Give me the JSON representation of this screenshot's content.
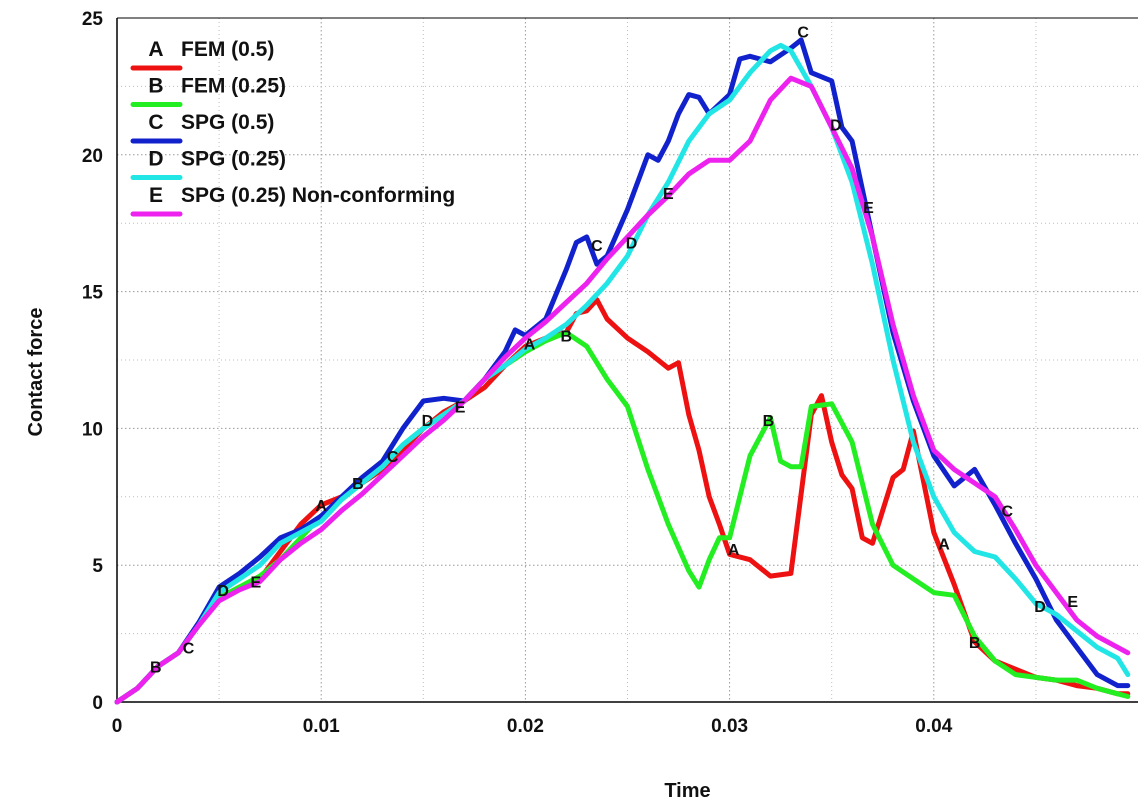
{
  "chart_data": {
    "type": "line",
    "title": "",
    "xlabel": "Time",
    "ylabel": "Contact force",
    "xlim": [
      0,
      0.05
    ],
    "ylim": [
      0,
      25
    ],
    "xticks": [
      0,
      0.01,
      0.02,
      0.03,
      0.04
    ],
    "xtick_labels": [
      "0",
      "0.01",
      "0.02",
      "0.03",
      "0.04"
    ],
    "yticks": [
      0,
      5,
      10,
      15,
      20,
      25
    ],
    "ytick_labels": [
      "0",
      "5",
      "10",
      "15",
      "20",
      "25"
    ],
    "grid": true,
    "legend_position": "top-left",
    "series": [
      {
        "name": "FEM (0.5)",
        "marker": "A",
        "color": "#ee1111",
        "x": [
          0,
          0.001,
          0.002,
          0.003,
          0.004,
          0.005,
          0.006,
          0.007,
          0.008,
          0.009,
          0.01,
          0.011,
          0.012,
          0.013,
          0.014,
          0.015,
          0.016,
          0.017,
          0.018,
          0.019,
          0.02,
          0.021,
          0.022,
          0.0225,
          0.023,
          0.0235,
          0.024,
          0.025,
          0.026,
          0.027,
          0.0275,
          0.028,
          0.0285,
          0.029,
          0.0295,
          0.03,
          0.031,
          0.032,
          0.033,
          0.034,
          0.0345,
          0.035,
          0.0355,
          0.036,
          0.0365,
          0.037,
          0.0375,
          0.038,
          0.0385,
          0.039,
          0.04,
          0.041,
          0.042,
          0.043,
          0.044,
          0.045,
          0.046,
          0.047,
          0.048,
          0.049,
          0.0495
        ],
        "y": [
          0,
          0.5,
          1.3,
          1.8,
          2.8,
          3.8,
          4.2,
          4.5,
          5.5,
          6.5,
          7.2,
          7.5,
          8.0,
          8.5,
          9.2,
          10.0,
          10.6,
          11.0,
          11.5,
          12.3,
          13.0,
          13.3,
          13.5,
          14.2,
          14.3,
          14.7,
          14.0,
          13.3,
          12.8,
          12.2,
          12.4,
          10.5,
          9.2,
          7.5,
          6.5,
          5.4,
          5.2,
          4.6,
          4.7,
          10.5,
          11.2,
          9.5,
          8.3,
          7.8,
          6.0,
          5.8,
          7.0,
          8.2,
          8.5,
          9.9,
          6.2,
          4.3,
          2.2,
          1.5,
          1.2,
          0.9,
          0.8,
          0.6,
          0.5,
          0.3,
          0.3
        ]
      },
      {
        "name": "FEM (0.25)",
        "marker": "B",
        "color": "#22ee22",
        "x": [
          0,
          0.001,
          0.002,
          0.003,
          0.004,
          0.005,
          0.006,
          0.007,
          0.008,
          0.009,
          0.01,
          0.011,
          0.012,
          0.013,
          0.014,
          0.015,
          0.016,
          0.017,
          0.018,
          0.019,
          0.02,
          0.021,
          0.022,
          0.023,
          0.024,
          0.025,
          0.026,
          0.027,
          0.028,
          0.0285,
          0.029,
          0.0295,
          0.03,
          0.031,
          0.032,
          0.0325,
          0.033,
          0.0335,
          0.034,
          0.035,
          0.036,
          0.037,
          0.038,
          0.039,
          0.04,
          0.041,
          0.042,
          0.043,
          0.044,
          0.045,
          0.046,
          0.047,
          0.048,
          0.049,
          0.0495
        ],
        "y": [
          0,
          0.5,
          1.3,
          1.8,
          2.8,
          3.8,
          4.2,
          4.6,
          5.2,
          6.0,
          6.8,
          7.4,
          8.0,
          8.6,
          9.4,
          10.0,
          10.5,
          11.0,
          11.8,
          12.3,
          12.8,
          13.2,
          13.5,
          13.0,
          11.8,
          10.8,
          8.5,
          6.5,
          4.8,
          4.2,
          5.2,
          6.0,
          6.0,
          9.0,
          10.4,
          8.8,
          8.6,
          8.6,
          10.8,
          10.9,
          9.5,
          6.5,
          5.0,
          4.5,
          4.0,
          3.9,
          2.4,
          1.5,
          1.0,
          0.9,
          0.8,
          0.8,
          0.5,
          0.3,
          0.2
        ]
      },
      {
        "name": "SPG (0.5)",
        "marker": "C",
        "color": "#1122cc",
        "x": [
          0,
          0.001,
          0.002,
          0.003,
          0.004,
          0.005,
          0.006,
          0.007,
          0.008,
          0.009,
          0.01,
          0.011,
          0.012,
          0.013,
          0.014,
          0.015,
          0.016,
          0.017,
          0.018,
          0.019,
          0.0195,
          0.02,
          0.021,
          0.022,
          0.0225,
          0.023,
          0.0235,
          0.024,
          0.025,
          0.026,
          0.0265,
          0.027,
          0.0275,
          0.028,
          0.0285,
          0.029,
          0.03,
          0.0305,
          0.031,
          0.032,
          0.033,
          0.0335,
          0.034,
          0.035,
          0.0355,
          0.036,
          0.037,
          0.038,
          0.039,
          0.04,
          0.041,
          0.042,
          0.043,
          0.044,
          0.045,
          0.046,
          0.047,
          0.048,
          0.049,
          0.0495
        ],
        "y": [
          0,
          0.5,
          1.3,
          1.8,
          2.9,
          4.2,
          4.7,
          5.3,
          6.0,
          6.3,
          6.8,
          7.5,
          8.2,
          8.8,
          10.0,
          11.0,
          11.1,
          11.0,
          11.8,
          12.8,
          13.6,
          13.4,
          14.0,
          15.8,
          16.8,
          17.0,
          16.0,
          16.3,
          18.0,
          20.0,
          19.8,
          20.5,
          21.5,
          22.2,
          22.1,
          21.5,
          22.2,
          23.5,
          23.6,
          23.4,
          23.9,
          24.2,
          23.0,
          22.7,
          21.0,
          20.5,
          17.0,
          13.5,
          11.0,
          9.0,
          7.9,
          8.5,
          7.2,
          5.8,
          4.5,
          3.0,
          2.0,
          1.0,
          0.6,
          0.6
        ]
      },
      {
        "name": "SPG (0.25)",
        "marker": "D",
        "color": "#22e6e6",
        "x": [
          0,
          0.001,
          0.002,
          0.003,
          0.004,
          0.005,
          0.006,
          0.007,
          0.008,
          0.009,
          0.01,
          0.011,
          0.012,
          0.013,
          0.014,
          0.015,
          0.016,
          0.017,
          0.018,
          0.019,
          0.02,
          0.021,
          0.022,
          0.023,
          0.024,
          0.025,
          0.026,
          0.027,
          0.028,
          0.029,
          0.03,
          0.031,
          0.032,
          0.0325,
          0.033,
          0.034,
          0.035,
          0.036,
          0.037,
          0.038,
          0.039,
          0.04,
          0.041,
          0.042,
          0.043,
          0.044,
          0.045,
          0.046,
          0.047,
          0.048,
          0.049,
          0.0495
        ],
        "y": [
          0,
          0.5,
          1.3,
          1.8,
          2.8,
          4.0,
          4.5,
          5.0,
          5.8,
          6.2,
          6.6,
          7.4,
          8.0,
          8.6,
          9.4,
          10.0,
          10.5,
          11.0,
          11.8,
          12.3,
          12.9,
          13.3,
          13.8,
          14.5,
          15.3,
          16.3,
          17.8,
          19.0,
          20.5,
          21.5,
          22.0,
          23.0,
          23.8,
          24.0,
          23.8,
          22.5,
          21.0,
          19.0,
          16.0,
          12.5,
          9.5,
          7.5,
          6.2,
          5.5,
          5.3,
          4.5,
          3.6,
          3.2,
          2.6,
          2.0,
          1.6,
          1.0
        ]
      },
      {
        "name": "SPG (0.25) Non-conforming",
        "marker": "E",
        "color": "#ee22ee",
        "x": [
          0,
          0.001,
          0.002,
          0.003,
          0.004,
          0.005,
          0.006,
          0.007,
          0.008,
          0.009,
          0.01,
          0.011,
          0.012,
          0.013,
          0.014,
          0.015,
          0.016,
          0.017,
          0.018,
          0.019,
          0.02,
          0.021,
          0.022,
          0.023,
          0.024,
          0.025,
          0.026,
          0.027,
          0.028,
          0.029,
          0.03,
          0.031,
          0.032,
          0.033,
          0.034,
          0.035,
          0.036,
          0.037,
          0.038,
          0.039,
          0.04,
          0.041,
          0.042,
          0.043,
          0.044,
          0.045,
          0.046,
          0.047,
          0.048,
          0.049,
          0.0495
        ],
        "y": [
          0,
          0.5,
          1.3,
          1.8,
          2.8,
          3.7,
          4.1,
          4.4,
          5.2,
          5.8,
          6.3,
          7.0,
          7.6,
          8.3,
          9.0,
          9.7,
          10.3,
          11.0,
          11.8,
          12.6,
          13.3,
          13.9,
          14.6,
          15.3,
          16.2,
          17.0,
          17.8,
          18.5,
          19.3,
          19.8,
          19.8,
          20.5,
          22.0,
          22.8,
          22.5,
          21.0,
          19.5,
          17.0,
          13.8,
          11.2,
          9.2,
          8.5,
          8.0,
          7.5,
          6.3,
          5.0,
          4.0,
          3.0,
          2.4,
          2.0,
          1.8
        ]
      }
    ],
    "curve_markers": [
      {
        "label": "A",
        "x": 0.01,
        "y": 7.2
      },
      {
        "label": "A",
        "x": 0.0202,
        "y": 13.1
      },
      {
        "label": "A",
        "x": 0.0302,
        "y": 5.6
      },
      {
        "label": "A",
        "x": 0.0405,
        "y": 5.8
      },
      {
        "label": "B",
        "x": 0.0019,
        "y": 1.3
      },
      {
        "label": "B",
        "x": 0.0118,
        "y": 8.0
      },
      {
        "label": "B",
        "x": 0.022,
        "y": 13.4
      },
      {
        "label": "B",
        "x": 0.0319,
        "y": 10.3
      },
      {
        "label": "B",
        "x": 0.042,
        "y": 2.2
      },
      {
        "label": "C",
        "x": 0.0035,
        "y": 2.0
      },
      {
        "label": "C",
        "x": 0.0135,
        "y": 9.0
      },
      {
        "label": "C",
        "x": 0.0235,
        "y": 16.7
      },
      {
        "label": "C",
        "x": 0.0336,
        "y": 24.5
      },
      {
        "label": "C",
        "x": 0.0436,
        "y": 7.0
      },
      {
        "label": "D",
        "x": 0.0052,
        "y": 4.1
      },
      {
        "label": "D",
        "x": 0.0152,
        "y": 10.3
      },
      {
        "label": "D",
        "x": 0.0252,
        "y": 16.8
      },
      {
        "label": "D",
        "x": 0.0352,
        "y": 21.1
      },
      {
        "label": "D",
        "x": 0.0452,
        "y": 3.5
      },
      {
        "label": "E",
        "x": 0.0068,
        "y": 4.4
      },
      {
        "label": "E",
        "x": 0.0168,
        "y": 10.8
      },
      {
        "label": "E",
        "x": 0.027,
        "y": 18.6
      },
      {
        "label": "E",
        "x": 0.0368,
        "y": 18.1
      },
      {
        "label": "E",
        "x": 0.0468,
        "y": 3.7
      }
    ]
  }
}
